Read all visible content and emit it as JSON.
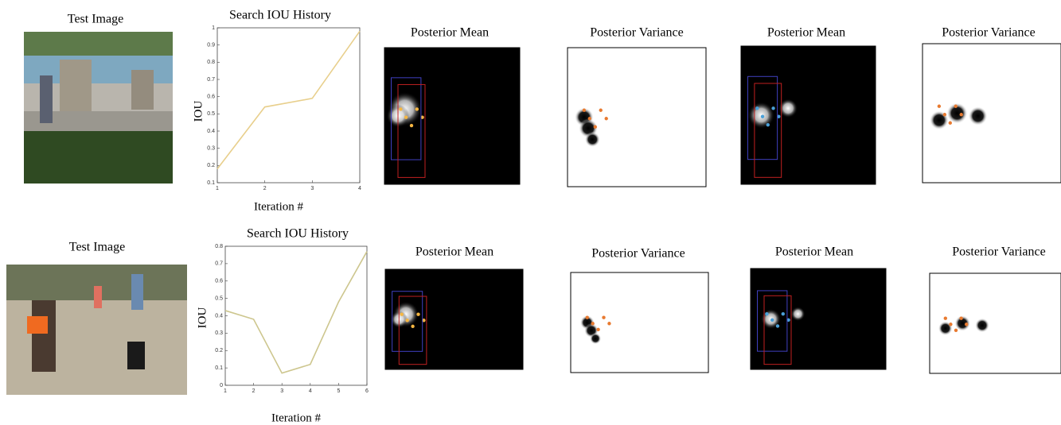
{
  "rows": [
    {
      "image_title": "Test Image",
      "chart": {
        "type": "line",
        "title": "Search IOU History",
        "xlabel": "Iteration #",
        "ylabel": "IOU",
        "color": "#e8cf8c",
        "x": [
          1,
          2,
          3,
          4
        ],
        "values": [
          0.18,
          0.54,
          0.59,
          0.98
        ],
        "xlim": [
          1,
          4
        ],
        "xticks": [
          1,
          2,
          3,
          4
        ],
        "ylim": [
          0.1,
          1
        ],
        "yticks": [
          0.1,
          0.2,
          0.3,
          0.4,
          0.5,
          0.6,
          0.7,
          0.8,
          0.9,
          1
        ]
      },
      "panels": [
        "Posterior Mean",
        "Posterior Variance",
        "Posterior Mean",
        "Posterior Variance"
      ]
    },
    {
      "image_title": "Test Image",
      "chart": {
        "type": "line",
        "title": "Search IOU History",
        "xlabel": "Iteration #",
        "ylabel": "IOU",
        "color": "#cdc68e",
        "x": [
          1,
          2,
          3,
          4,
          5,
          6
        ],
        "values": [
          0.43,
          0.38,
          0.07,
          0.12,
          0.48,
          0.77
        ],
        "xlim": [
          1,
          6
        ],
        "xticks": [
          1,
          2,
          3,
          4,
          5,
          6
        ],
        "ylim": [
          0,
          0.8
        ],
        "yticks": [
          0,
          0.1,
          0.2,
          0.3,
          0.4,
          0.5,
          0.6,
          0.7,
          0.8
        ]
      },
      "panels": [
        "Posterior Mean",
        "Posterior Variance",
        "Posterior Mean",
        "Posterior Variance"
      ]
    }
  ]
}
